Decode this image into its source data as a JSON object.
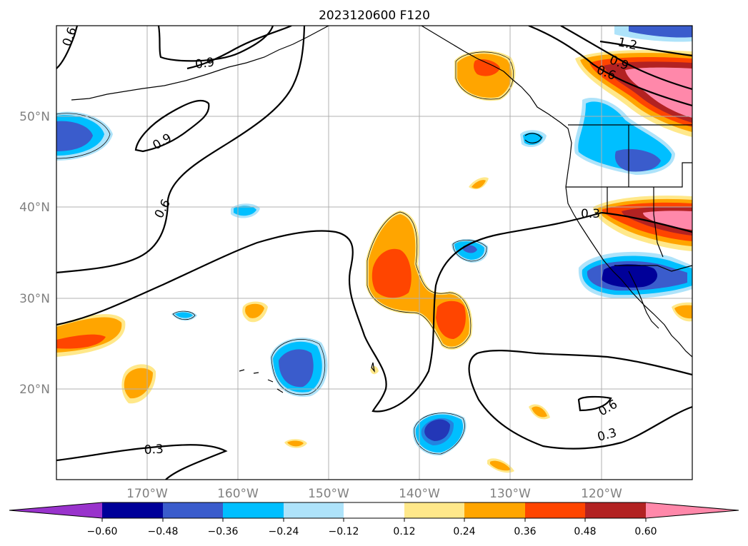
{
  "title": "2023120600 F120",
  "lon_labels": [
    "170°W",
    "160°W",
    "150°W",
    "140°W",
    "130°W",
    "120°W"
  ],
  "lat_labels": [
    "50°N",
    "40°N",
    "30°N",
    "20°N"
  ],
  "map_extent": {
    "lon_min": -180,
    "lon_max": -110,
    "lat_min": 10,
    "lat_max": 60
  },
  "contour_labels": [
    "0.6",
    "0.9",
    "0.9",
    "0.6",
    "0.3",
    "0.3",
    "0.6",
    "0.3",
    "1.2",
    "0.9",
    "0.6"
  ],
  "colorbar": {
    "tick_labels": [
      "−0.60",
      "−0.48",
      "−0.36",
      "−0.24",
      "−0.12",
      "0.12",
      "0.24",
      "0.36",
      "0.48",
      "0.60"
    ],
    "colors": {
      "under": "#9933cc",
      "c1": "#000099",
      "c2": "#3a5ccc",
      "c3": "#00bfff",
      "c4": "#aee3fa",
      "c5": "#ffffff",
      "c6": "#ffe88a",
      "c7": "#ffa500",
      "c8": "#ff4500",
      "c9": "#b22222",
      "over": "#ff88aa"
    }
  }
}
